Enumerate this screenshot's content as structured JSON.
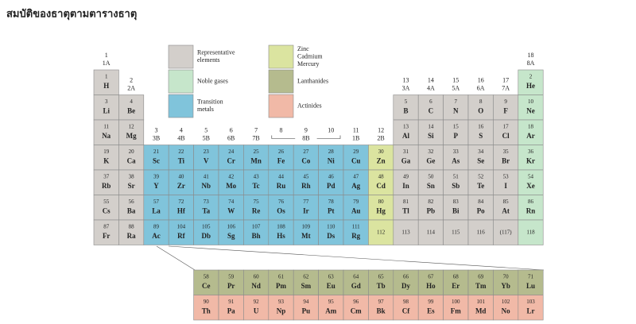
{
  "title": "สมบัติของธาตุตามตารางธาตุ",
  "legend": [
    {
      "t": "r",
      "color": "#d3cfcb",
      "label": [
        "Representative",
        "elements"
      ]
    },
    {
      "t": "g",
      "color": "#c6e6cb",
      "label": [
        "Noble gases"
      ]
    },
    {
      "t": "m",
      "color": "#80c4db",
      "label": [
        "Transition",
        "metals"
      ]
    },
    {
      "t": "z",
      "color": "#dbe4a0",
      "label": [
        "Zinc",
        "Cadmium",
        "Mercury"
      ]
    },
    {
      "t": "l",
      "color": "#b5bb8e",
      "label": [
        "Lanthanides"
      ]
    },
    {
      "t": "a",
      "color": "#f1b9a7",
      "label": [
        "Actinides"
      ]
    }
  ],
  "groups": [
    {
      "num": "1",
      "ab": "1A"
    },
    {
      "num": "2",
      "ab": "2A"
    },
    {
      "num": "3",
      "ab": "3B"
    },
    {
      "num": "4",
      "ab": "4B"
    },
    {
      "num": "5",
      "ab": "5B"
    },
    {
      "num": "6",
      "ab": "6B"
    },
    {
      "num": "7",
      "ab": "7B"
    },
    {
      "num": "8"
    },
    {
      "num": "9",
      "ab": "8B"
    },
    {
      "num": "10"
    },
    {
      "num": "11",
      "ab": "1B"
    },
    {
      "num": "12",
      "ab": "2B"
    },
    {
      "num": "13",
      "ab": "3A"
    },
    {
      "num": "14",
      "ab": "4A"
    },
    {
      "num": "15",
      "ab": "5A"
    },
    {
      "num": "16",
      "ab": "6A"
    },
    {
      "num": "17",
      "ab": "7A"
    },
    {
      "num": "18",
      "ab": "8A"
    }
  ],
  "periods": [
    [
      {
        "n": 1,
        "s": "H",
        "t": "r"
      },
      null,
      null,
      null,
      null,
      null,
      null,
      null,
      null,
      null,
      null,
      null,
      null,
      null,
      null,
      null,
      null,
      {
        "n": 2,
        "s": "He",
        "t": "g"
      }
    ],
    [
      {
        "n": 3,
        "s": "Li",
        "t": "r"
      },
      {
        "n": 4,
        "s": "Be",
        "t": "r"
      },
      null,
      null,
      null,
      null,
      null,
      null,
      null,
      null,
      null,
      null,
      {
        "n": 5,
        "s": "B",
        "t": "r"
      },
      {
        "n": 6,
        "s": "C",
        "t": "r"
      },
      {
        "n": 7,
        "s": "N",
        "t": "r"
      },
      {
        "n": 8,
        "s": "O",
        "t": "r"
      },
      {
        "n": 9,
        "s": "F",
        "t": "r"
      },
      {
        "n": 10,
        "s": "Ne",
        "t": "g"
      }
    ],
    [
      {
        "n": 11,
        "s": "Na",
        "t": "r"
      },
      {
        "n": 12,
        "s": "Mg",
        "t": "r"
      },
      null,
      null,
      null,
      null,
      null,
      null,
      null,
      null,
      null,
      null,
      {
        "n": 13,
        "s": "Al",
        "t": "r"
      },
      {
        "n": 14,
        "s": "Si",
        "t": "r"
      },
      {
        "n": 15,
        "s": "P",
        "t": "r"
      },
      {
        "n": 16,
        "s": "S",
        "t": "r"
      },
      {
        "n": 17,
        "s": "Cl",
        "t": "r"
      },
      {
        "n": 18,
        "s": "Ar",
        "t": "g"
      }
    ],
    [
      {
        "n": 19,
        "s": "K",
        "t": "r"
      },
      {
        "n": 20,
        "s": "Ca",
        "t": "r"
      },
      {
        "n": 21,
        "s": "Sc",
        "t": "m"
      },
      {
        "n": 22,
        "s": "Ti",
        "t": "m"
      },
      {
        "n": 23,
        "s": "V",
        "t": "m"
      },
      {
        "n": 24,
        "s": "Cr",
        "t": "m"
      },
      {
        "n": 25,
        "s": "Mn",
        "t": "m"
      },
      {
        "n": 26,
        "s": "Fe",
        "t": "m"
      },
      {
        "n": 27,
        "s": "Co",
        "t": "m"
      },
      {
        "n": 28,
        "s": "Ni",
        "t": "m"
      },
      {
        "n": 29,
        "s": "Cu",
        "t": "m"
      },
      {
        "n": 30,
        "s": "Zn",
        "t": "z"
      },
      {
        "n": 31,
        "s": "Ga",
        "t": "r"
      },
      {
        "n": 32,
        "s": "Ge",
        "t": "r"
      },
      {
        "n": 33,
        "s": "As",
        "t": "r"
      },
      {
        "n": 34,
        "s": "Se",
        "t": "r"
      },
      {
        "n": 35,
        "s": "Br",
        "t": "r"
      },
      {
        "n": 36,
        "s": "Kr",
        "t": "g"
      }
    ],
    [
      {
        "n": 37,
        "s": "Rb",
        "t": "r"
      },
      {
        "n": 38,
        "s": "Sr",
        "t": "r"
      },
      {
        "n": 39,
        "s": "Y",
        "t": "m"
      },
      {
        "n": 40,
        "s": "Zr",
        "t": "m"
      },
      {
        "n": 41,
        "s": "Nb",
        "t": "m"
      },
      {
        "n": 42,
        "s": "Mo",
        "t": "m"
      },
      {
        "n": 43,
        "s": "Tc",
        "t": "m"
      },
      {
        "n": 44,
        "s": "Ru",
        "t": "m"
      },
      {
        "n": 45,
        "s": "Rh",
        "t": "m"
      },
      {
        "n": 46,
        "s": "Pd",
        "t": "m"
      },
      {
        "n": 47,
        "s": "Ag",
        "t": "m"
      },
      {
        "n": 48,
        "s": "Cd",
        "t": "z"
      },
      {
        "n": 49,
        "s": "In",
        "t": "r"
      },
      {
        "n": 50,
        "s": "Sn",
        "t": "r"
      },
      {
        "n": 51,
        "s": "Sb",
        "t": "r"
      },
      {
        "n": 52,
        "s": "Te",
        "t": "r"
      },
      {
        "n": 53,
        "s": "I",
        "t": "r"
      },
      {
        "n": 54,
        "s": "Xe",
        "t": "g"
      }
    ],
    [
      {
        "n": 55,
        "s": "Cs",
        "t": "r"
      },
      {
        "n": 56,
        "s": "Ba",
        "t": "r"
      },
      {
        "n": 57,
        "s": "La",
        "t": "m"
      },
      {
        "n": 72,
        "s": "Hf",
        "t": "m"
      },
      {
        "n": 73,
        "s": "Ta",
        "t": "m"
      },
      {
        "n": 74,
        "s": "W",
        "t": "m"
      },
      {
        "n": 75,
        "s": "Re",
        "t": "m"
      },
      {
        "n": 76,
        "s": "Os",
        "t": "m"
      },
      {
        "n": 77,
        "s": "Ir",
        "t": "m"
      },
      {
        "n": 78,
        "s": "Pt",
        "t": "m"
      },
      {
        "n": 79,
        "s": "Au",
        "t": "m"
      },
      {
        "n": 80,
        "s": "Hg",
        "t": "z"
      },
      {
        "n": 81,
        "s": "Tl",
        "t": "r"
      },
      {
        "n": 82,
        "s": "Pb",
        "t": "r"
      },
      {
        "n": 83,
        "s": "Bi",
        "t": "r"
      },
      {
        "n": 84,
        "s": "Po",
        "t": "r"
      },
      {
        "n": 85,
        "s": "At",
        "t": "r"
      },
      {
        "n": 86,
        "s": "Rn",
        "t": "g"
      }
    ],
    [
      {
        "n": 87,
        "s": "Fr",
        "t": "r"
      },
      {
        "n": 88,
        "s": "Ra",
        "t": "r"
      },
      {
        "n": 89,
        "s": "Ac",
        "t": "m"
      },
      {
        "n": 104,
        "s": "Rf",
        "t": "m"
      },
      {
        "n": 105,
        "s": "Db",
        "t": "m"
      },
      {
        "n": 106,
        "s": "Sg",
        "t": "m"
      },
      {
        "n": 107,
        "s": "Bh",
        "t": "m"
      },
      {
        "n": 108,
        "s": "Hs",
        "t": "m"
      },
      {
        "n": 109,
        "s": "Mt",
        "t": "m"
      },
      {
        "n": 110,
        "s": "Ds",
        "t": "m"
      },
      {
        "n": 111,
        "s": "Rg",
        "t": "m"
      },
      {
        "n": 112,
        "t": "z"
      },
      {
        "n": 113,
        "t": "r"
      },
      {
        "n": 114,
        "t": "r"
      },
      {
        "n": 115,
        "t": "r"
      },
      {
        "n": 116,
        "t": "r"
      },
      {
        "n": "(117)",
        "t": "r"
      },
      {
        "n": 118,
        "t": "g"
      }
    ]
  ],
  "fblock": [
    [
      {
        "n": 58,
        "s": "Ce",
        "t": "l"
      },
      {
        "n": 59,
        "s": "Pr",
        "t": "l"
      },
      {
        "n": 60,
        "s": "Nd",
        "t": "l"
      },
      {
        "n": 61,
        "s": "Pm",
        "t": "l"
      },
      {
        "n": 62,
        "s": "Sm",
        "t": "l"
      },
      {
        "n": 63,
        "s": "Eu",
        "t": "l"
      },
      {
        "n": 64,
        "s": "Gd",
        "t": "l"
      },
      {
        "n": 65,
        "s": "Tb",
        "t": "l"
      },
      {
        "n": 66,
        "s": "Dy",
        "t": "l"
      },
      {
        "n": 67,
        "s": "Ho",
        "t": "l"
      },
      {
        "n": 68,
        "s": "Er",
        "t": "l"
      },
      {
        "n": 69,
        "s": "Tm",
        "t": "l"
      },
      {
        "n": 70,
        "s": "Yb",
        "t": "l"
      },
      {
        "n": 71,
        "s": "Lu",
        "t": "l"
      }
    ],
    [
      {
        "n": 90,
        "s": "Th",
        "t": "a"
      },
      {
        "n": 91,
        "s": "Pa",
        "t": "a"
      },
      {
        "n": 92,
        "s": "U",
        "t": "a"
      },
      {
        "n": 93,
        "s": "Np",
        "t": "a"
      },
      {
        "n": 94,
        "s": "Pu",
        "t": "a"
      },
      {
        "n": 95,
        "s": "Am",
        "t": "a"
      },
      {
        "n": 96,
        "s": "Cm",
        "t": "a"
      },
      {
        "n": 97,
        "s": "Bk",
        "t": "a"
      },
      {
        "n": 98,
        "s": "Cf",
        "t": "a"
      },
      {
        "n": 99,
        "s": "Es",
        "t": "a"
      },
      {
        "n": 100,
        "s": "Fm",
        "t": "a"
      },
      {
        "n": 101,
        "s": "Md",
        "t": "a"
      },
      {
        "n": 102,
        "s": "No",
        "t": "a"
      },
      {
        "n": 103,
        "s": "Lr",
        "t": "a"
      }
    ]
  ]
}
